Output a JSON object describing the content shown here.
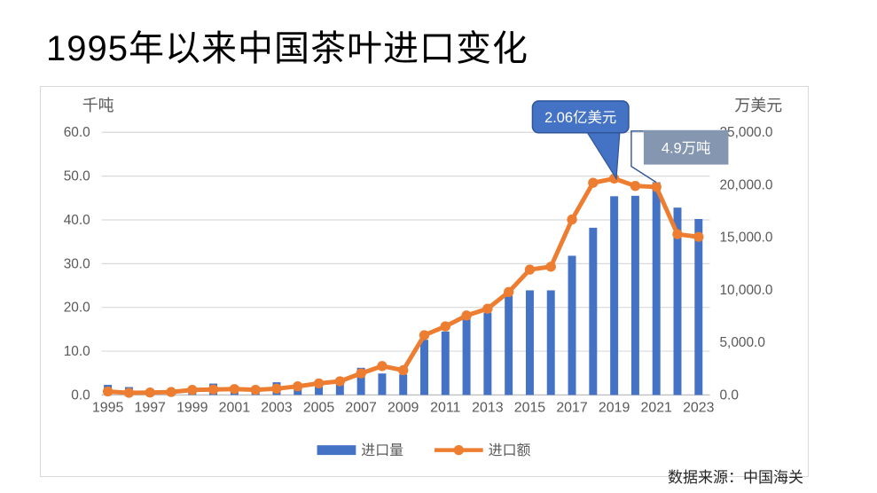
{
  "title": "1995年以来中国茶叶进口变化",
  "source": "数据来源：中国海关",
  "chart_data": {
    "type": "bar",
    "subtype": "combo-bar-line-dual-axis",
    "categories": [
      1995,
      1996,
      1997,
      1998,
      1999,
      2000,
      2001,
      2002,
      2003,
      2004,
      2005,
      2006,
      2007,
      2008,
      2009,
      2010,
      2011,
      2012,
      2013,
      2014,
      2015,
      2016,
      2017,
      2018,
      2019,
      2020,
      2021,
      2022,
      2023
    ],
    "series": [
      {
        "name": "进口量",
        "type": "bar",
        "axis": "left",
        "unit": "千吨",
        "color": "#4472C4",
        "values": [
          2.3,
          1.8,
          1.2,
          1.3,
          1.7,
          2.6,
          1.4,
          1.5,
          2.9,
          2.2,
          2.3,
          2.5,
          6.2,
          4.9,
          4.7,
          12.6,
          14.5,
          18.2,
          18.8,
          22.7,
          23.9,
          23.9,
          31.8,
          38.2,
          45.4,
          45.5,
          48.6,
          42.8,
          40.2
        ]
      },
      {
        "name": "进口额",
        "type": "line",
        "axis": "right",
        "unit": "万美元",
        "color": "#ED7D31",
        "values": [
          330,
          200,
          230,
          280,
          480,
          520,
          560,
          490,
          600,
          820,
          1100,
          1300,
          2050,
          2750,
          2350,
          5690,
          6530,
          7560,
          8210,
          9800,
          11930,
          12210,
          16700,
          20200,
          20600,
          19900,
          19800,
          15300,
          15050
        ]
      }
    ],
    "left_axis": {
      "title": "千吨",
      "min": 0,
      "max": 60,
      "step": 10,
      "tick_labels": [
        "0.0",
        "10.0",
        "20.0",
        "30.0",
        "40.0",
        "50.0",
        "60.0"
      ]
    },
    "right_axis": {
      "title": "万美元",
      "min": 0,
      "max": 25000,
      "step": 5000,
      "tick_labels": [
        "0.0",
        "5,000.0",
        "10,000.0",
        "15,000.0",
        "20,000.0",
        "25,000.0"
      ]
    },
    "x_tick_labels": [
      "1995",
      "1997",
      "1999",
      "2001",
      "2003",
      "2005",
      "2007",
      "2009",
      "2011",
      "2013",
      "2015",
      "2017",
      "2019",
      "2021",
      "2023"
    ],
    "legend": {
      "position": "bottom",
      "items": [
        "进口量",
        "进口额"
      ]
    },
    "grid": true,
    "annotations": [
      {
        "text": "2.06亿美元",
        "target_year": 2019,
        "target_series": "进口额",
        "style": "callout-bubble",
        "fill": "#4472C4",
        "border": "#2F5597",
        "text_color": "#FFFFFF"
      },
      {
        "text": "4.9万吨",
        "target_year": 2021,
        "target_series": "进口量",
        "style": "box-with-leader",
        "fill": "#8496B0",
        "border": "#2F5597",
        "text_color": "#FFFFFF"
      }
    ],
    "colors": {
      "bar": "#4472C4",
      "line": "#ED7D31",
      "gridline": "#D9D9D9",
      "axis_line": "#BFBFBF",
      "tick_text": "#595959"
    }
  }
}
